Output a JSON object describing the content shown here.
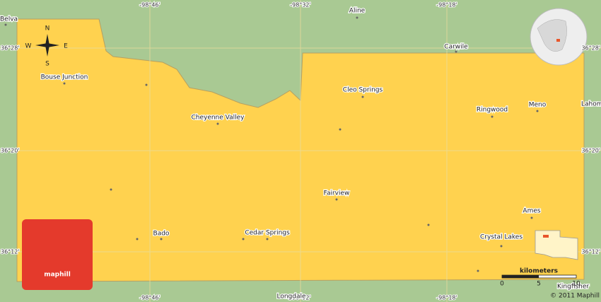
{
  "coordinates": {
    "top": [
      "-98°46'",
      "-98°32'",
      "-98°18'"
    ],
    "bottom": [
      "-98°46'",
      "-98°32'",
      "-98°18'"
    ],
    "left": [
      "36°28'",
      "36°20'",
      "36°12'"
    ],
    "right": [
      "36°28'",
      "36°20'",
      "36°12'"
    ]
  },
  "places": [
    "Belva",
    "Aline",
    "Carwile",
    "Bouse Junction",
    "Cleo Springs",
    "Cheyenne Valley",
    "Ringwood",
    "Meno",
    "Lahoma",
    "Fairview",
    "Ames",
    "Bado",
    "Cedar Springs",
    "Crystal Lakes",
    "Longdale",
    "Kingfisher"
  ],
  "compass": {
    "north": "N",
    "west": "W",
    "east": "E",
    "south": "S"
  },
  "scale": {
    "title": "kilometers",
    "ticks": [
      "0",
      "5",
      "10"
    ]
  },
  "copyright": "© 2011 Maphill",
  "logo": "maphill"
}
